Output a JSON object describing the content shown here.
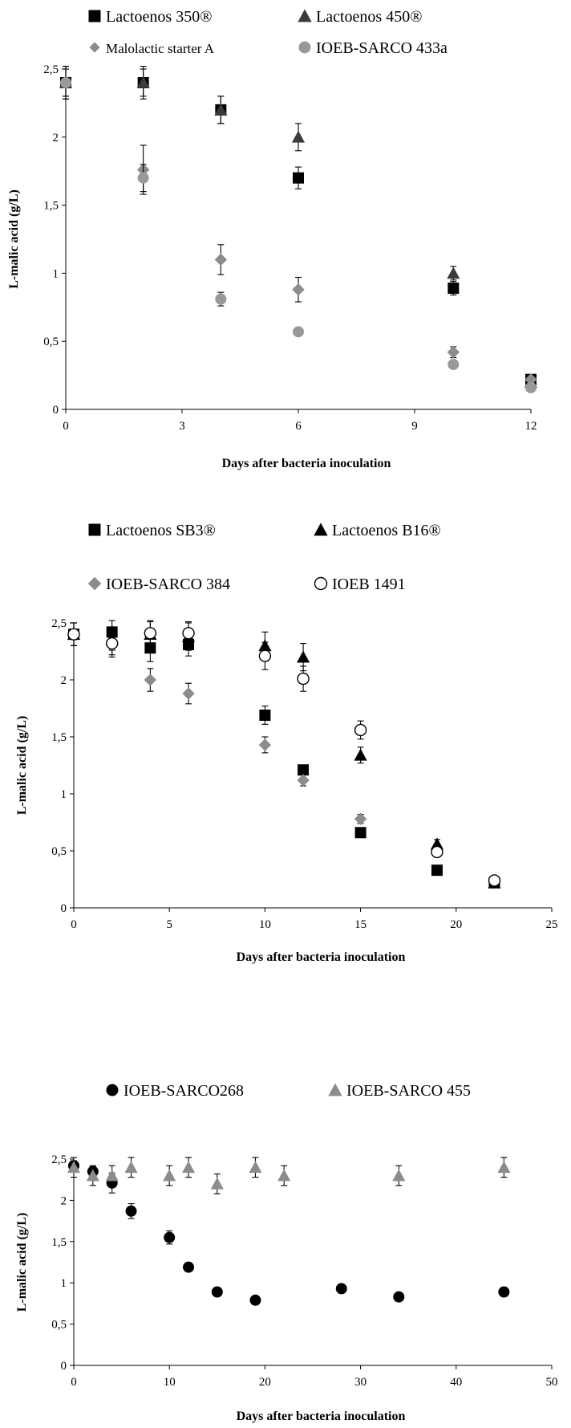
{
  "chart_data": [
    {
      "type": "scatter",
      "xlabel": "Days after bacteria inoculation",
      "ylabel": "L-malic acid (g/L)",
      "xlim": [
        0,
        12
      ],
      "ylim": [
        0,
        2.5
      ],
      "xticks": [
        0,
        3,
        6,
        9,
        12
      ],
      "yticks": [
        0,
        0.5,
        1,
        1.5,
        2,
        2.5
      ],
      "xtick_labels": [
        "0",
        "3",
        "6",
        "9",
        "12"
      ],
      "ytick_labels": [
        "0",
        "0,5",
        "1",
        "1,5",
        "2",
        "2,5"
      ],
      "grid": false,
      "legend_position": "top",
      "series": [
        {
          "name": "Lactoenos 350®",
          "marker": "square",
          "color": "#000000",
          "x": [
            0,
            2,
            4,
            6,
            10,
            12
          ],
          "y": [
            2.4,
            2.4,
            2.2,
            1.7,
            0.89,
            0.22
          ],
          "err": [
            0.12,
            0.12,
            0.1,
            0.08,
            0.05,
            0.03
          ]
        },
        {
          "name": "Lactoenos 450®",
          "marker": "triangle",
          "color": "#3a3a3a",
          "x": [
            0,
            2,
            4,
            6,
            10,
            12
          ],
          "y": [
            2.4,
            2.4,
            2.2,
            2.0,
            1.0,
            0.2
          ],
          "err": [
            0.1,
            0.1,
            0.1,
            0.1,
            0.05,
            0.03
          ]
        },
        {
          "name": "Malolactic starter A",
          "marker": "diamond",
          "color": "#8c8c8c",
          "x": [
            0,
            2,
            4,
            6,
            10,
            12
          ],
          "y": [
            2.4,
            1.76,
            1.1,
            0.88,
            0.42,
            0.22
          ],
          "err": [
            0.12,
            0.18,
            0.11,
            0.09,
            0.04,
            0.03
          ]
        },
        {
          "name": "IOEB-SARCO 433a",
          "marker": "circle",
          "color": "#999999",
          "x": [
            0,
            2,
            4,
            6,
            10,
            12
          ],
          "y": [
            2.4,
            1.7,
            0.81,
            0.57,
            0.33,
            0.16
          ],
          "err": [
            0.1,
            0.1,
            0.05,
            0.03,
            0.03,
            0.02
          ]
        }
      ]
    },
    {
      "type": "scatter",
      "xlabel": "Days after bacteria inoculation",
      "ylabel": "L-malic acid (g/L)",
      "xlim": [
        0,
        25
      ],
      "ylim": [
        0,
        2.5
      ],
      "xticks": [
        0,
        5,
        10,
        15,
        20,
        25
      ],
      "yticks": [
        0,
        0.5,
        1,
        1.5,
        2,
        2.5
      ],
      "xtick_labels": [
        "0",
        "5",
        "10",
        "15",
        "20",
        "25"
      ],
      "ytick_labels": [
        "0",
        "0,5",
        "1",
        "1,5",
        "2",
        "2,5"
      ],
      "grid": false,
      "legend_position": "top",
      "series": [
        {
          "name": "Lactoenos SB3®",
          "marker": "square",
          "color": "#000000",
          "x": [
            0,
            2,
            4,
            6,
            10,
            12,
            15,
            19,
            22
          ],
          "y": [
            2.4,
            2.42,
            2.28,
            2.31,
            1.69,
            1.21,
            0.66,
            0.33,
            0.22
          ],
          "err": [
            0.1,
            0.1,
            0.12,
            0.1,
            0.08,
            0,
            0,
            0,
            0
          ]
        },
        {
          "name": "Lactoenos B16®",
          "marker": "triangle",
          "color": "#000000",
          "x": [
            0,
            2,
            4,
            6,
            10,
            12,
            15,
            19,
            22
          ],
          "y": [
            2.4,
            2.36,
            2.4,
            2.38,
            2.3,
            2.2,
            1.34,
            0.56,
            0.22
          ],
          "err": [
            0.1,
            0.1,
            0.12,
            0.12,
            0.12,
            0.12,
            0.07,
            0.04,
            0.02
          ]
        },
        {
          "name": "IOEB-SARCO 384",
          "marker": "diamond",
          "color": "#8c8c8c",
          "x": [
            0,
            2,
            4,
            6,
            10,
            12,
            15
          ],
          "y": [
            2.4,
            2.3,
            2.0,
            1.88,
            1.43,
            1.12,
            0.78
          ],
          "err": [
            0.1,
            0.1,
            0.1,
            0.09,
            0.07,
            0.05,
            0.04
          ]
        },
        {
          "name": "IOEB 1491",
          "marker": "open-circle",
          "color": "#000000",
          "x": [
            0,
            2,
            4,
            6,
            10,
            12,
            15,
            19,
            22
          ],
          "y": [
            2.4,
            2.32,
            2.41,
            2.41,
            2.21,
            2.01,
            1.56,
            0.49,
            0.24
          ],
          "err": [
            0.1,
            0.1,
            0.1,
            0.1,
            0.12,
            0.11,
            0.08,
            0.04,
            0.02
          ]
        }
      ]
    },
    {
      "type": "scatter",
      "xlabel": "Days after bacteria inoculation",
      "ylabel": "L-malic acid (g/L)",
      "xlim": [
        0,
        50
      ],
      "ylim": [
        0,
        2.5
      ],
      "xticks": [
        0,
        10,
        20,
        30,
        40,
        50
      ],
      "yticks": [
        0,
        0.5,
        1,
        1.5,
        2,
        2.5
      ],
      "xtick_labels": [
        "0",
        "10",
        "20",
        "30",
        "40",
        "50"
      ],
      "ytick_labels": [
        "0",
        "0,5",
        "1",
        "1,5",
        "2",
        "2,5"
      ],
      "grid": false,
      "legend_position": "top",
      "series": [
        {
          "name": "IOEB-SARCO268",
          "marker": "circle",
          "color": "#000000",
          "x": [
            0,
            2,
            4,
            6,
            10,
            12,
            15,
            19,
            28,
            34,
            45
          ],
          "y": [
            2.42,
            2.35,
            2.21,
            1.87,
            1.55,
            1.19,
            0.89,
            0.79,
            0.93,
            0.83,
            0.89
          ],
          "err": [
            0.06,
            0.06,
            0.12,
            0.09,
            0.08,
            0.05,
            0,
            0,
            0,
            0,
            0
          ]
        },
        {
          "name": "IOEB-SARCO 455",
          "marker": "triangle",
          "color": "#8c8c8c",
          "x": [
            0,
            2,
            4,
            6,
            10,
            12,
            15,
            19,
            22,
            34,
            45
          ],
          "y": [
            2.4,
            2.3,
            2.3,
            2.4,
            2.3,
            2.4,
            2.2,
            2.4,
            2.3,
            2.3,
            2.4
          ],
          "err": [
            0.12,
            0.12,
            0.12,
            0.12,
            0.12,
            0.12,
            0.12,
            0.12,
            0.12,
            0.12,
            0.12
          ]
        }
      ]
    }
  ]
}
